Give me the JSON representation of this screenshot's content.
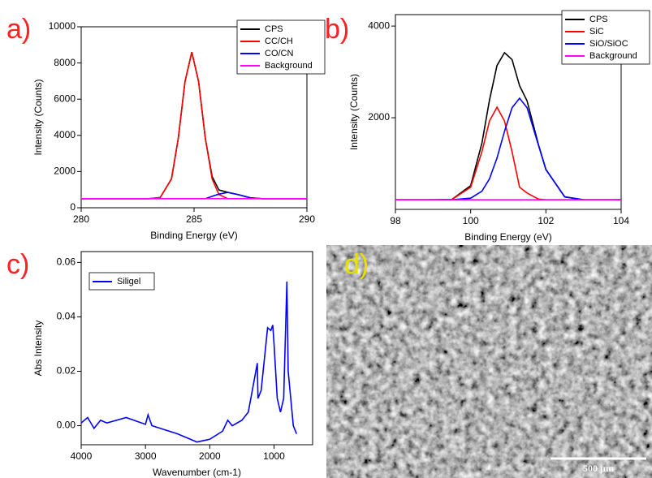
{
  "chart_data": [
    {
      "type": "line",
      "panel_label": "a)",
      "x_label": "Binding Energy (eV)",
      "y_label": "Intensity (Counts)",
      "x": [
        280,
        281,
        282,
        283,
        283.5,
        284,
        284.3,
        284.6,
        284.9,
        285.2,
        285.5,
        285.8,
        286.1,
        286.5,
        287,
        287.5,
        288,
        290
      ],
      "series": [
        {
          "name": "CPS",
          "color": "#000000",
          "values": [
            500,
            500,
            500,
            501,
            564,
            1596,
            3830,
            6980,
            8600,
            6980,
            3830,
            1727,
            985,
            850,
            713,
            547,
            500,
            500
          ]
        },
        {
          "name": "CC/CH",
          "color": "#ff0000",
          "values": [
            500,
            500,
            500,
            501,
            564,
            1596,
            3830,
            6980,
            8600,
            6980,
            3830,
            1596,
            731,
            500,
            500,
            500,
            500,
            500
          ]
        },
        {
          "name": "CO/CN",
          "color": "#0000ff",
          "values": [
            500,
            500,
            500,
            500,
            500,
            500,
            500,
            500,
            500,
            500,
            500,
            631,
            754,
            850,
            713,
            547,
            500,
            500
          ]
        },
        {
          "name": "Background",
          "color": "#ff00ff",
          "values": [
            500,
            500,
            500,
            500,
            500,
            500,
            500,
            500,
            500,
            500,
            500,
            500,
            500,
            500,
            500,
            500,
            500,
            500
          ]
        }
      ],
      "xlim": [
        280,
        290
      ],
      "xticks": [
        280,
        285,
        290
      ],
      "ylim": [
        0,
        10000
      ],
      "yticks": [
        0,
        2000,
        4000,
        6000,
        8000,
        10000
      ],
      "legend": "top-right"
    },
    {
      "type": "line",
      "panel_label": "b)",
      "x_label": "Binding Energy (eV)",
      "y_label": "Intensity (Counts)",
      "x": [
        98,
        99,
        99.5,
        100,
        100.3,
        100.5,
        100.7,
        100.9,
        101.1,
        101.3,
        101.5,
        101.8,
        102,
        102.5,
        103,
        104
      ],
      "series": [
        {
          "name": "CPS",
          "color": "#000000",
          "values": [
            210,
            210,
            216,
            517,
            1449,
            2383,
            3140,
            3420,
            3268,
            2698,
            2365,
            1420,
            870,
            273,
            210,
            210
          ]
        },
        {
          "name": "SiC",
          "color": "#ff0000",
          "values": [
            210,
            210,
            216,
            483,
            1261,
            1927,
            2230,
            1927,
            1261,
            483,
            358,
            224,
            210,
            210,
            210,
            210
          ]
        },
        {
          "name": "SiO/SiOC",
          "color": "#0000ff",
          "values": [
            210,
            210,
            210,
            244,
            398,
            666,
            1120,
            1703,
            2217,
            2425,
            2217,
            1406,
            870,
            273,
            210,
            210
          ]
        },
        {
          "name": "Background",
          "color": "#ff00ff",
          "values": [
            210,
            210,
            210,
            210,
            210,
            210,
            210,
            210,
            210,
            210,
            210,
            210,
            210,
            210,
            210,
            210
          ]
        }
      ],
      "xlim": [
        98,
        104
      ],
      "xticks": [
        98,
        100,
        102,
        104
      ],
      "ylim": [
        0,
        4250
      ],
      "yticks": [
        2000,
        4000
      ],
      "legend": "top-right"
    },
    {
      "type": "line",
      "panel_label": "c)",
      "x_label": "Wavenumber (cm-1)",
      "y_label": "Abs Intensity",
      "x": [
        4000,
        3900,
        3800,
        3700,
        3600,
        3300,
        3000,
        2960,
        2900,
        2500,
        2200,
        2000,
        1800,
        1720,
        1650,
        1500,
        1400,
        1260,
        1250,
        1200,
        1100,
        1050,
        1020,
        1000,
        950,
        900,
        850,
        800,
        780,
        700,
        650
      ],
      "series": [
        {
          "name": "Siligel",
          "color": "#0000ff",
          "values": [
            0.001,
            0.003,
            -0.001,
            0.002,
            0.001,
            0.003,
            0.0005,
            0.004,
            0.0,
            -0.003,
            -0.006,
            -0.005,
            -0.002,
            0.002,
            0.0,
            0.002,
            0.005,
            0.023,
            0.01,
            0.013,
            0.036,
            0.035,
            0.037,
            0.03,
            0.01,
            0.005,
            0.01,
            0.053,
            0.02,
            0.0,
            -0.003
          ]
        }
      ],
      "xlim": [
        4000,
        400
      ],
      "xticks": [
        4000,
        3000,
        2000,
        1000
      ],
      "ylim": [
        -0.007,
        0.064
      ],
      "yticks": [
        {
          "value": 0,
          "label": "0.00"
        },
        0.02,
        0.04,
        0.06
      ],
      "legend": "top-left"
    }
  ],
  "image_panel": {
    "label": "d)",
    "scale_bar": "500 µm"
  }
}
